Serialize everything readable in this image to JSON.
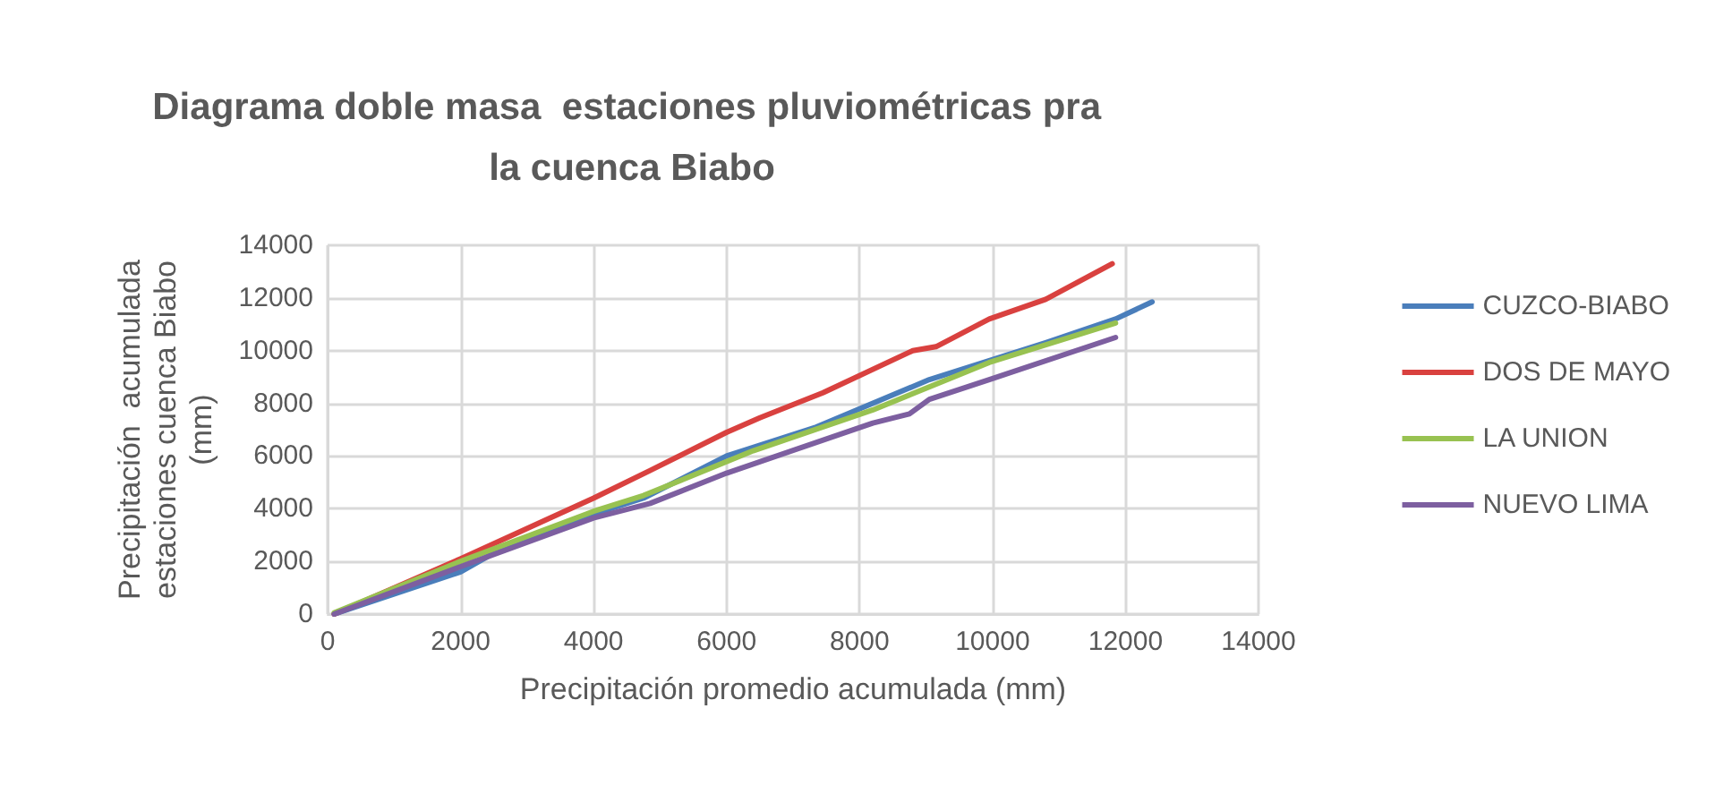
{
  "chart_data": {
    "type": "line",
    "title": "Diagrama doble masa  estaciones pluviométricas pra la cuenca Biabo",
    "xlabel": "Precipitación promedio acumulada (mm)",
    "ylabel": "Precipitación  acumulada estaciones cuenca Biabo (mm)",
    "xlim": [
      0,
      14000
    ],
    "xticks": [
      0,
      2000,
      4000,
      6000,
      8000,
      10000,
      12000,
      14000
    ],
    "ylim": [
      0,
      14000
    ],
    "yticks": [
      0,
      2000,
      4000,
      6000,
      8000,
      10000,
      12000,
      14000
    ],
    "grid": true,
    "legend": "right",
    "marker": "none",
    "line_style": "solid",
    "series": [
      {
        "name": "CUZCO-BIABO",
        "color": "#4a7ebb",
        "x": [
          100,
          2000,
          2700,
          4000,
          4750,
          6000,
          7350,
          9050,
          10800,
          11850,
          12400
        ],
        "values": [
          0,
          1600,
          2600,
          3800,
          4400,
          6000,
          7100,
          8900,
          10300,
          11200,
          11850
        ]
      },
      {
        "name": "DOS DE MAYO",
        "color": "#d9413f",
        "x": [
          100,
          2000,
          4000,
          4850,
          6000,
          6500,
          7450,
          8800,
          9150,
          9950,
          10800,
          11800
        ],
        "values": [
          0,
          2100,
          4400,
          5450,
          6900,
          7450,
          8400,
          10000,
          10150,
          11200,
          11950,
          13300
        ]
      },
      {
        "name": "LA UNION",
        "color": "#98c251",
        "x": [
          100,
          2000,
          4000,
          4750,
          6400,
          8200,
          9950,
          11850
        ],
        "values": [
          50,
          2000,
          3900,
          4500,
          6200,
          7750,
          9550,
          11050
        ]
      },
      {
        "name": "NUEVO LIMA",
        "color": "#7d5fa0",
        "x": [
          100,
          2000,
          4000,
          4850,
          6000,
          8200,
          8750,
          9050,
          9950,
          11850
        ],
        "values": [
          0,
          1800,
          3650,
          4200,
          5350,
          7250,
          7600,
          8150,
          8900,
          10500
        ]
      }
    ]
  }
}
